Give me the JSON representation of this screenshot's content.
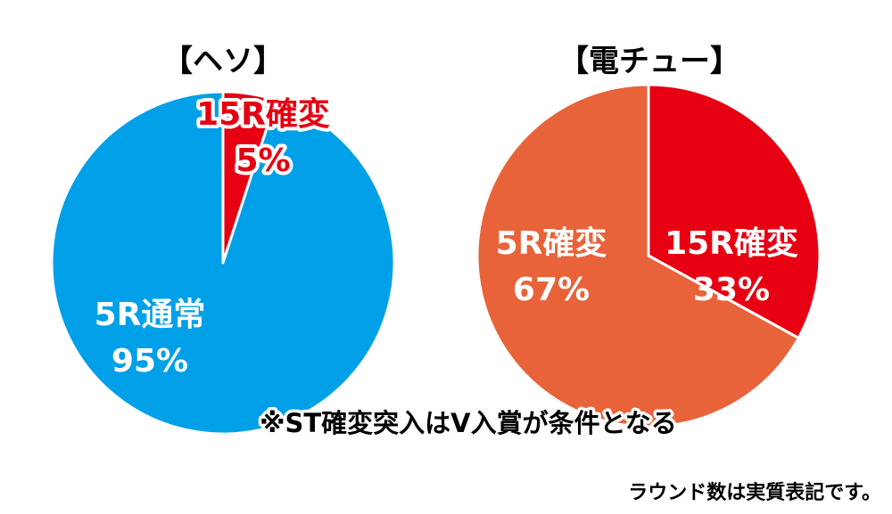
{
  "chart_data": [
    {
      "type": "pie",
      "title": "【ヘソ】",
      "start_angle_deg": 0,
      "slices": [
        {
          "name": "15R確変",
          "value": 5,
          "label": "5%",
          "color": "#e60012",
          "text_color": "#e60012",
          "outlined": true
        },
        {
          "name": "5R通常",
          "value": 95,
          "label": "95%",
          "color": "#00a0e9",
          "text_color": "#ffffff",
          "outlined": false
        }
      ]
    },
    {
      "type": "pie",
      "title": "【電チュー】",
      "start_angle_deg": 0,
      "slices": [
        {
          "name": "15R確変",
          "value": 33,
          "label": "33%",
          "color": "#e60012",
          "text_color": "#ffffff",
          "outlined": false
        },
        {
          "name": "5R確変",
          "value": 67,
          "label": "67%",
          "color": "#e8633a",
          "text_color": "#ffffff",
          "outlined": false
        }
      ]
    }
  ],
  "footnote": "※ST確変突入はV入賞が条件となる",
  "note": "ラウンド数は実質表記です。"
}
